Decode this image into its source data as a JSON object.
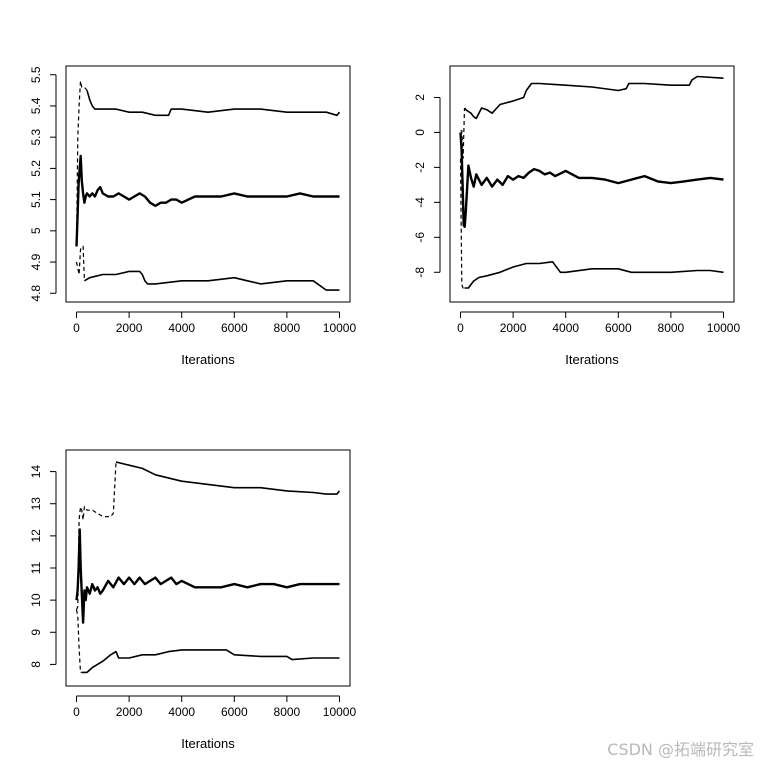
{
  "chart_data": [
    {
      "type": "line",
      "xlabel": "Iterations",
      "ylabel": "",
      "xlim": [
        0,
        10000
      ],
      "ylim": [
        4.8,
        5.5
      ],
      "xticks": [
        0,
        2000,
        4000,
        6000,
        8000,
        10000
      ],
      "yticks": [
        4.8,
        4.9,
        5.0,
        5.1,
        5.2,
        5.3,
        5.4,
        5.5
      ],
      "grid": false,
      "series": [
        {
          "role": "mean",
          "style": "solid-bold",
          "x": [
            0,
            40,
            80,
            120,
            160,
            200,
            250,
            300,
            350,
            400,
            500,
            600,
            700,
            800,
            900,
            1000,
            1200,
            1400,
            1600,
            1800,
            2000,
            2200,
            2400,
            2600,
            2800,
            3000,
            3200,
            3400,
            3600,
            3800,
            4000,
            4500,
            5000,
            5500,
            6000,
            6500,
            7000,
            7500,
            8000,
            8500,
            9000,
            9500,
            10000
          ],
          "y": [
            4.95,
            5.05,
            5.15,
            5.2,
            5.24,
            5.16,
            5.12,
            5.09,
            5.11,
            5.12,
            5.11,
            5.12,
            5.11,
            5.13,
            5.14,
            5.12,
            5.11,
            5.11,
            5.12,
            5.11,
            5.1,
            5.11,
            5.12,
            5.11,
            5.09,
            5.08,
            5.09,
            5.09,
            5.1,
            5.1,
            5.09,
            5.11,
            5.11,
            5.11,
            5.12,
            5.11,
            5.11,
            5.11,
            5.11,
            5.12,
            5.11,
            5.11,
            5.11
          ]
        },
        {
          "role": "upper",
          "style": "dashed-then-solid",
          "x": [
            0,
            50,
            100,
            150,
            200,
            250,
            300,
            400,
            500,
            600,
            700,
            800,
            1000,
            1500,
            2000,
            2200,
            2500,
            3000,
            3500,
            3600,
            4000,
            5000,
            6000,
            7000,
            8000,
            9000,
            9500,
            9900,
            10000
          ],
          "y": [
            4.95,
            5.3,
            5.4,
            5.48,
            5.46,
            5.46,
            5.46,
            5.45,
            5.42,
            5.4,
            5.39,
            5.39,
            5.39,
            5.39,
            5.38,
            5.38,
            5.38,
            5.37,
            5.37,
            5.39,
            5.39,
            5.38,
            5.39,
            5.39,
            5.38,
            5.38,
            5.38,
            5.37,
            5.38
          ]
        },
        {
          "role": "lower",
          "style": "dashed-then-solid",
          "x": [
            0,
            50,
            100,
            150,
            200,
            250,
            300,
            500,
            1000,
            1500,
            2000,
            2400,
            2500,
            2600,
            2700,
            2800,
            3000,
            4000,
            5000,
            6000,
            6500,
            7000,
            8000,
            9000,
            9500,
            10000
          ],
          "y": [
            4.9,
            4.88,
            4.86,
            4.94,
            4.95,
            4.95,
            4.84,
            4.85,
            4.86,
            4.86,
            4.87,
            4.87,
            4.86,
            4.84,
            4.83,
            4.83,
            4.83,
            4.84,
            4.84,
            4.85,
            4.84,
            4.83,
            4.84,
            4.84,
            4.81,
            4.81
          ]
        }
      ]
    },
    {
      "type": "line",
      "xlabel": "Iterations",
      "ylabel": "",
      "xlim": [
        0,
        10000
      ],
      "ylim": [
        -9.2,
        3.3
      ],
      "xticks": [
        0,
        2000,
        4000,
        6000,
        8000,
        10000
      ],
      "yticks": [
        -8,
        -6,
        -4,
        -2,
        0,
        2
      ],
      "grid": false,
      "series": [
        {
          "role": "mean",
          "style": "solid-bold",
          "x": [
            0,
            40,
            80,
            120,
            160,
            200,
            300,
            400,
            500,
            600,
            800,
            1000,
            1200,
            1400,
            1600,
            1800,
            2000,
            2200,
            2400,
            2600,
            2800,
            3000,
            3200,
            3400,
            3600,
            4000,
            4500,
            5000,
            5500,
            6000,
            6500,
            7000,
            7500,
            8000,
            8500,
            9000,
            9500,
            10000
          ],
          "y": [
            0,
            -1.0,
            -3.0,
            -5.3,
            -5.4,
            -4.5,
            -1.9,
            -2.6,
            -3.1,
            -2.4,
            -3.0,
            -2.6,
            -3.1,
            -2.7,
            -3.0,
            -2.5,
            -2.7,
            -2.5,
            -2.6,
            -2.3,
            -2.1,
            -2.2,
            -2.4,
            -2.3,
            -2.5,
            -2.2,
            -2.6,
            -2.6,
            -2.7,
            -2.9,
            -2.7,
            -2.5,
            -2.8,
            -2.9,
            -2.8,
            -2.7,
            -2.6,
            -2.7
          ]
        },
        {
          "role": "upper",
          "style": "dashed-then-solid",
          "x": [
            0,
            50,
            100,
            150,
            200,
            300,
            400,
            500,
            600,
            800,
            1000,
            1200,
            1500,
            2000,
            2400,
            2500,
            2600,
            2700,
            3000,
            4000,
            5000,
            6000,
            6300,
            6400,
            7000,
            8000,
            8700,
            8800,
            9000,
            10000
          ],
          "y": [
            0.1,
            0.1,
            -1.5,
            1.4,
            1.3,
            1.2,
            1.1,
            0.9,
            0.8,
            1.4,
            1.3,
            1.1,
            1.6,
            1.8,
            2.0,
            2.4,
            2.6,
            2.8,
            2.8,
            2.7,
            2.6,
            2.4,
            2.5,
            2.8,
            2.8,
            2.7,
            2.7,
            3.0,
            3.2,
            3.1
          ]
        },
        {
          "role": "lower",
          "style": "dashed-then-solid",
          "x": [
            0,
            50,
            100,
            150,
            200,
            300,
            400,
            500,
            700,
            1000,
            1500,
            2000,
            2500,
            3000,
            3500,
            3600,
            3800,
            4000,
            5000,
            6000,
            6500,
            7000,
            8000,
            9000,
            9500,
            10000
          ],
          "y": [
            -1.5,
            -8.7,
            -8.9,
            -8.9,
            -8.9,
            -8.9,
            -8.7,
            -8.5,
            -8.3,
            -8.2,
            -8.0,
            -7.7,
            -7.5,
            -7.5,
            -7.4,
            -7.6,
            -8.0,
            -8.0,
            -7.8,
            -7.8,
            -8.0,
            -8.0,
            -8.0,
            -7.9,
            -7.9,
            -8.0
          ]
        }
      ]
    },
    {
      "type": "line",
      "xlabel": "Iterations",
      "ylabel": "",
      "xlim": [
        0,
        10000
      ],
      "ylim": [
        7.6,
        14.4
      ],
      "xticks": [
        0,
        2000,
        4000,
        6000,
        8000,
        10000
      ],
      "yticks": [
        8,
        9,
        10,
        11,
        12,
        13,
        14
      ],
      "grid": false,
      "series": [
        {
          "role": "mean",
          "style": "solid-bold",
          "x": [
            0,
            40,
            80,
            120,
            160,
            200,
            250,
            300,
            350,
            400,
            500,
            600,
            700,
            800,
            900,
            1000,
            1200,
            1400,
            1600,
            1800,
            2000,
            2200,
            2400,
            2600,
            2800,
            3000,
            3200,
            3400,
            3600,
            3800,
            4000,
            4500,
            5000,
            5500,
            6000,
            6500,
            7000,
            7500,
            8000,
            8500,
            9000,
            9500,
            10000
          ],
          "y": [
            10,
            10.3,
            11.0,
            12.2,
            11.0,
            10.2,
            9.3,
            10.3,
            10.0,
            10.4,
            10.2,
            10.5,
            10.3,
            10.4,
            10.2,
            10.3,
            10.6,
            10.4,
            10.7,
            10.5,
            10.7,
            10.5,
            10.7,
            10.5,
            10.6,
            10.7,
            10.5,
            10.6,
            10.7,
            10.5,
            10.6,
            10.4,
            10.4,
            10.4,
            10.5,
            10.4,
            10.5,
            10.5,
            10.4,
            10.5,
            10.5,
            10.5,
            10.5
          ]
        },
        {
          "role": "upper",
          "style": "dashed-then-solid",
          "x": [
            0,
            50,
            100,
            150,
            200,
            250,
            300,
            350,
            400,
            600,
            800,
            1000,
            1200,
            1300,
            1400,
            1500,
            2000,
            2500,
            3000,
            4000,
            5000,
            6000,
            7000,
            8000,
            9000,
            9500,
            9900,
            10000
          ],
          "y": [
            9.7,
            9.8,
            12.5,
            12.9,
            12.8,
            12.5,
            12.9,
            12.9,
            12.8,
            12.8,
            12.7,
            12.6,
            12.6,
            12.6,
            12.7,
            14.3,
            14.2,
            14.1,
            13.9,
            13.7,
            13.6,
            13.5,
            13.5,
            13.4,
            13.35,
            13.3,
            13.3,
            13.4
          ]
        },
        {
          "role": "lower",
          "style": "dashed-then-solid",
          "x": [
            0,
            50,
            100,
            150,
            200,
            400,
            600,
            1000,
            1300,
            1500,
            1600,
            2000,
            2500,
            3000,
            3500,
            4000,
            4500,
            5000,
            5500,
            5700,
            6000,
            7000,
            8000,
            8200,
            9000,
            10000
          ],
          "y": [
            9.7,
            9.5,
            8.5,
            7.75,
            7.75,
            7.75,
            7.9,
            8.1,
            8.3,
            8.4,
            8.2,
            8.2,
            8.3,
            8.3,
            8.4,
            8.45,
            8.45,
            8.45,
            8.45,
            8.45,
            8.3,
            8.25,
            8.25,
            8.15,
            8.2,
            8.2
          ]
        }
      ]
    }
  ],
  "watermark": "CSDN @拓端研究室"
}
